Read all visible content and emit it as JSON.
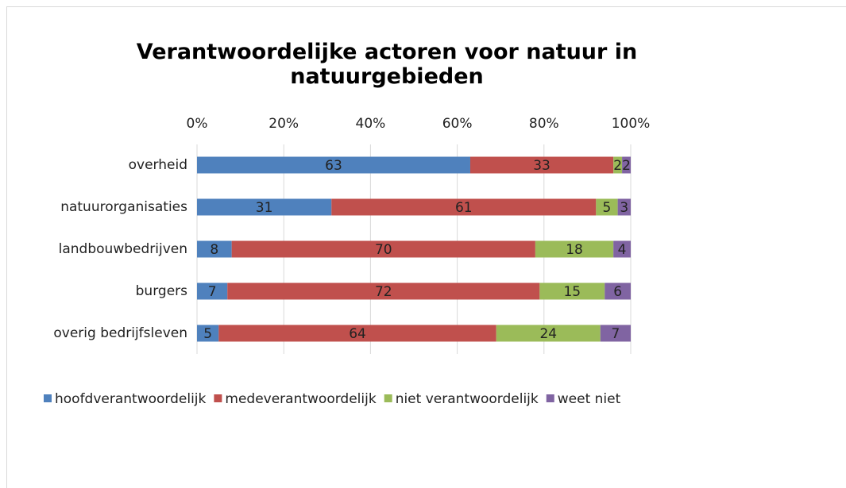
{
  "chart_data": {
    "type": "stacked_barh",
    "title": "Verantwoordelijke actoren voor natuur in natuurgebieden",
    "categories": [
      "overheid",
      "natuurorganisaties",
      "landbouwbedrijven",
      "burgers",
      "overig bedrijfsleven"
    ],
    "series": [
      {
        "name": "hoofdverantwoordelijk",
        "color": "#4f81bd",
        "values": [
          63,
          31,
          8,
          7,
          5
        ]
      },
      {
        "name": "medeverantwoordelijk",
        "color": "#c0504d",
        "values": [
          33,
          61,
          70,
          72,
          64
        ]
      },
      {
        "name": "niet verantwoordelijk",
        "color": "#9bbb59",
        "values": [
          2,
          5,
          18,
          15,
          24
        ]
      },
      {
        "name": "weet niet",
        "color": "#8064a2",
        "values": [
          2,
          3,
          4,
          6,
          7
        ]
      }
    ],
    "xlim": [
      0,
      100
    ],
    "xticks": [
      {
        "value": 0,
        "label": "0%"
      },
      {
        "value": 20,
        "label": "20%"
      },
      {
        "value": 40,
        "label": "40%"
      },
      {
        "value": 60,
        "label": "60%"
      },
      {
        "value": 80,
        "label": "80%"
      },
      {
        "value": 100,
        "label": "100%"
      }
    ],
    "grid": true,
    "legend": "bottom"
  }
}
